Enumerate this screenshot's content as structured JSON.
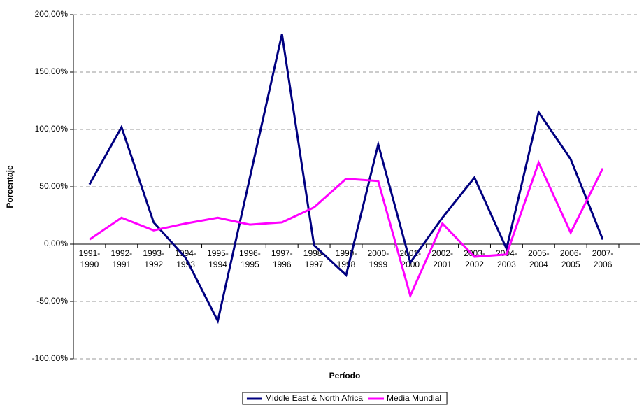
{
  "chart_data": {
    "type": "line",
    "x_label": "Período",
    "y_label": "Porcentaje",
    "categories": [
      "1991-1990",
      "1992-1991",
      "1993-1992",
      "1994-1993",
      "1995-1994",
      "1996-1995",
      "1997-1996",
      "1998-1997",
      "1999-1998",
      "2000-1999",
      "2001-2000",
      "2002-2001",
      "2003-2002",
      "2004-2003",
      "2005-2004",
      "2006-2005",
      "2007-2006"
    ],
    "series": [
      {
        "name": "Middle East & North Africa",
        "color": "#000080",
        "values": [
          52,
          102,
          19,
          -12,
          -67,
          58,
          183,
          -1,
          -27,
          87,
          -16,
          23,
          58,
          -4,
          115,
          74,
          4
        ]
      },
      {
        "name": "Media Mundial",
        "color": "#ff00ff",
        "values": [
          4,
          23,
          12,
          18,
          23,
          17,
          19,
          32,
          57,
          55,
          -45,
          18,
          -11,
          -9,
          71,
          10,
          66
        ]
      }
    ],
    "ylim": [
      -100,
      200
    ],
    "yticks": [
      {
        "value": -100,
        "label": "-100,00%"
      },
      {
        "value": -50,
        "label": "-50,00%"
      },
      {
        "value": 0,
        "label": "0,00%"
      },
      {
        "value": 50,
        "label": "50,00%"
      },
      {
        "value": 100,
        "label": "100,00%"
      },
      {
        "value": 150,
        "label": "150,00%"
      },
      {
        "value": 200,
        "label": "200,00%"
      }
    ],
    "grid": true,
    "legend": "bottom"
  }
}
